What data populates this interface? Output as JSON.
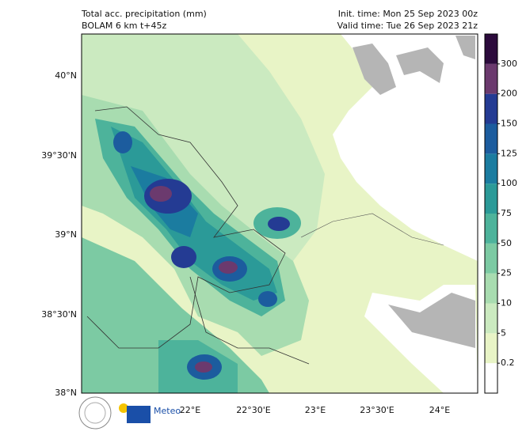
{
  "header": {
    "title": "Total acc. precipitation (mm)",
    "model": "BOLAM 6 km t+45z",
    "init_time": "Init. time: Mon 25 Sep 2023 00z",
    "valid_time": "Valid time: Tue 26 Sep 2023 21z"
  },
  "map": {
    "lat_labels": [
      "40°N",
      "39°30'N",
      "39°N",
      "38°30'N",
      "38°N"
    ],
    "lon_labels": [
      "22°E",
      "22°30'E",
      "23°E",
      "23°30'E",
      "24°E"
    ]
  },
  "colorbar": {
    "levels": [
      0.2,
      5,
      10,
      25,
      50,
      75,
      100,
      125,
      150,
      200,
      300
    ],
    "colors": [
      "#ffffff",
      "#e8f4c6",
      "#cbeac0",
      "#a8dcb0",
      "#7ccaa3",
      "#4db39b",
      "#2b9a98",
      "#1b7ca0",
      "#1c5c9e",
      "#243b93",
      "#6b3a6e",
      "#2c0b3c"
    ]
  },
  "logo": {
    "name": "Meteo"
  }
}
